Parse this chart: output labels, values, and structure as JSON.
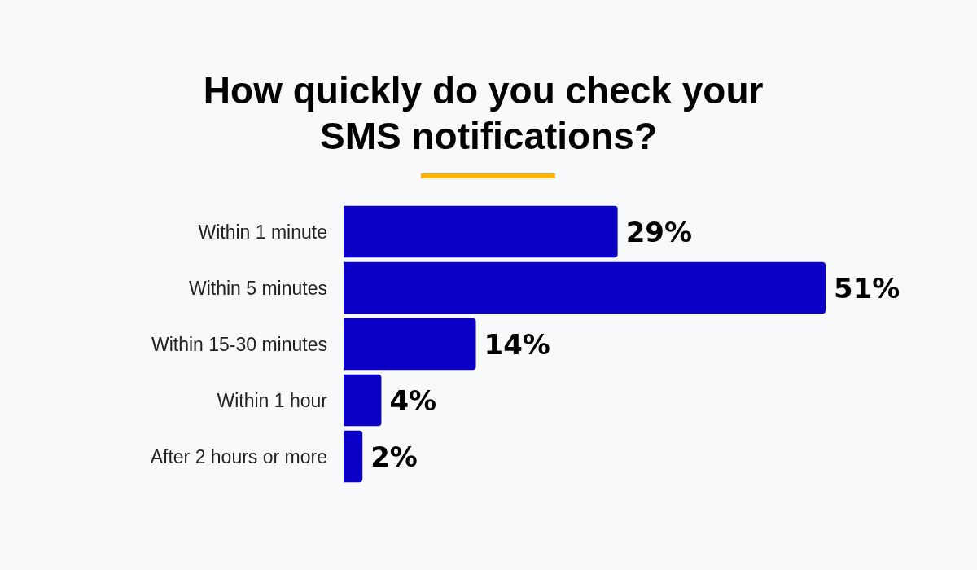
{
  "chart_data": {
    "type": "bar",
    "orientation": "horizontal",
    "title": "How quickly do you check your SMS notifications?",
    "categories": [
      "Within 1 minute",
      "Within 5 minutes",
      "Within 15-30 minutes",
      "Within 1 hour",
      "After 2 hours or more"
    ],
    "values": [
      29,
      51,
      14,
      4,
      2
    ],
    "value_labels": [
      "29%",
      "51%",
      "14%",
      "4%",
      "2%"
    ],
    "color": "#0a00c6",
    "grid": false
  }
}
